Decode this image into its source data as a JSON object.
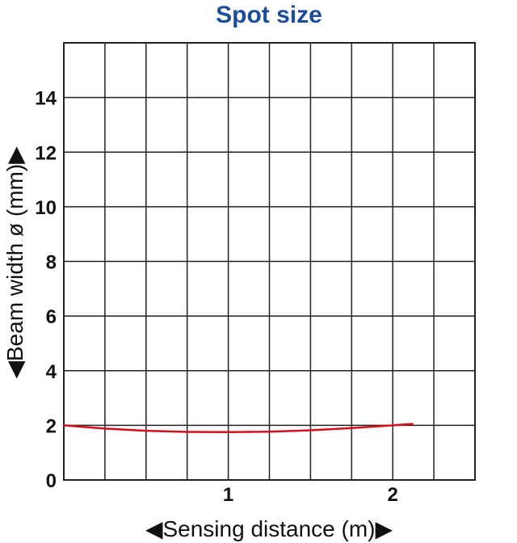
{
  "chart_data": {
    "type": "line",
    "title": "Spot size",
    "xlabel": "◀Sensing distance (m)▶",
    "ylabel": "◀Beam width ø (mm)▶",
    "xlim": [
      0,
      2.5
    ],
    "ylim": [
      0,
      16
    ],
    "x_ticks": [
      {
        "value": 0,
        "label": "0"
      },
      {
        "value": 1,
        "label": "1"
      },
      {
        "value": 2,
        "label": "2"
      }
    ],
    "y_ticks": [
      {
        "value": 2,
        "label": "2"
      },
      {
        "value": 4,
        "label": "4"
      },
      {
        "value": 6,
        "label": "6"
      },
      {
        "value": 8,
        "label": "8"
      },
      {
        "value": 10,
        "label": "10"
      },
      {
        "value": 12,
        "label": "12"
      },
      {
        "value": 14,
        "label": "14"
      }
    ],
    "x_grid_step": 0.25,
    "y_grid_step": 2,
    "grid": true,
    "series": [
      {
        "color": "#d4101a",
        "x": [
          0,
          0.25,
          0.5,
          0.75,
          1.0,
          1.25,
          1.5,
          1.75,
          2.0,
          2.12
        ],
        "y": [
          2.0,
          1.88,
          1.8,
          1.76,
          1.75,
          1.77,
          1.82,
          1.9,
          2.0,
          2.05
        ]
      }
    ]
  }
}
